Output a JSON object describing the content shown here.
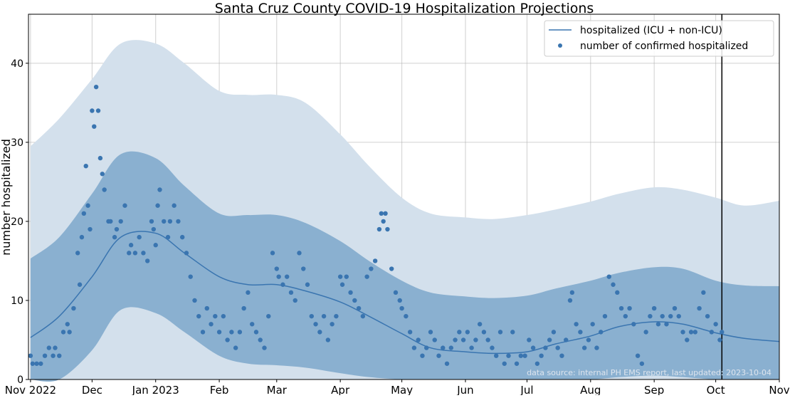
{
  "chart_data": {
    "type": "line",
    "title": "Santa Cruz County COVID-19 Hospitalization Projections",
    "xlabel": "",
    "ylabel": "number hospitalized",
    "xlim": [
      "2022-10-31",
      "2023-11-01"
    ],
    "ylim": [
      0,
      46.2
    ],
    "grid": true,
    "legend_position": "top-right",
    "x_ticks": [
      {
        "date": "2022-11-01",
        "label": "Nov 2022"
      },
      {
        "date": "2022-12-01",
        "label": "Dec"
      },
      {
        "date": "2023-01-01",
        "label": "Jan 2023"
      },
      {
        "date": "2023-02-01",
        "label": "Feb"
      },
      {
        "date": "2023-03-01",
        "label": "Mar"
      },
      {
        "date": "2023-04-01",
        "label": "Apr"
      },
      {
        "date": "2023-05-01",
        "label": "May"
      },
      {
        "date": "2023-06-01",
        "label": "Jun"
      },
      {
        "date": "2023-07-01",
        "label": "Jul"
      },
      {
        "date": "2023-08-01",
        "label": "Aug"
      },
      {
        "date": "2023-09-01",
        "label": "Sep"
      },
      {
        "date": "2023-10-01",
        "label": "Oct"
      },
      {
        "date": "2023-11-01",
        "label": "Nov"
      }
    ],
    "y_ticks": [
      0,
      10,
      20,
      30,
      40
    ],
    "colors": {
      "line": "#3a75b0",
      "points": "#3a75b0",
      "inner_band": "#8ab0d0",
      "outer_band": "#d3e0ec",
      "today_line": "#000000"
    },
    "today_line_date": "2023-10-04",
    "annotation": "data source: internal PH EMS report, last updated: 2023-10-04",
    "band_dates": [
      "2022-11-01",
      "2022-11-15",
      "2022-12-01",
      "2022-12-15",
      "2023-01-01",
      "2023-01-15",
      "2023-02-01",
      "2023-02-15",
      "2023-03-01",
      "2023-03-15",
      "2023-04-01",
      "2023-04-15",
      "2023-05-01",
      "2023-05-15",
      "2023-06-01",
      "2023-06-15",
      "2023-07-01",
      "2023-07-15",
      "2023-08-01",
      "2023-08-15",
      "2023-09-01",
      "2023-09-15",
      "2023-10-01",
      "2023-10-15",
      "2023-11-01"
    ],
    "series": [
      {
        "name": "hospitalized (ICU + non-ICU)",
        "kind": "line",
        "values": [
          5.3,
          8,
          13,
          18,
          18.5,
          16,
          13,
          12,
          12,
          11.2,
          9.8,
          8,
          5.8,
          4,
          3.5,
          3.3,
          3.5,
          4.5,
          5.5,
          6.7,
          7.3,
          7,
          5.9,
          5.2,
          4.8
        ]
      },
      {
        "kind": "band-outer",
        "upper": [
          29.5,
          33,
          38,
          42.5,
          42.5,
          40,
          36.5,
          36,
          36,
          35,
          31,
          27,
          23,
          21,
          20.5,
          20.3,
          20.8,
          21.5,
          22.5,
          23.5,
          24.3,
          24,
          23,
          22,
          22.6
        ],
        "lower": [
          0,
          0,
          0,
          0,
          0,
          0,
          0,
          0,
          0,
          0,
          0,
          0,
          0,
          0,
          0,
          0,
          0,
          0,
          0,
          0,
          0,
          0,
          0,
          0,
          0
        ]
      },
      {
        "kind": "band-inner",
        "upper": [
          15.3,
          18,
          23.5,
          28.5,
          28,
          24.5,
          21,
          20.8,
          20.8,
          19.8,
          17.5,
          15,
          12.5,
          11,
          10.5,
          10.3,
          10.6,
          11.5,
          12.5,
          13.5,
          14.2,
          14,
          12.5,
          11.9,
          11.8
        ],
        "lower": [
          0,
          0,
          3.7,
          8.8,
          8.4,
          6,
          3,
          2,
          1.8,
          1.5,
          0.8,
          0.3,
          0,
          0,
          0,
          0,
          0,
          0,
          0,
          0.3,
          0.5,
          0.3,
          0,
          0,
          0
        ]
      },
      {
        "name": "number of confirmed hospitalized",
        "kind": "scatter",
        "points": [
          [
            "2022-11-01",
            3
          ],
          [
            "2022-11-02",
            2
          ],
          [
            "2022-11-04",
            2
          ],
          [
            "2022-11-06",
            2
          ],
          [
            "2022-11-08",
            3
          ],
          [
            "2022-11-10",
            4
          ],
          [
            "2022-11-12",
            3
          ],
          [
            "2022-11-13",
            4
          ],
          [
            "2022-11-15",
            3
          ],
          [
            "2022-11-17",
            6
          ],
          [
            "2022-11-19",
            7
          ],
          [
            "2022-11-20",
            6
          ],
          [
            "2022-11-22",
            9
          ],
          [
            "2022-11-24",
            16
          ],
          [
            "2022-11-25",
            12
          ],
          [
            "2022-11-26",
            18
          ],
          [
            "2022-11-27",
            21
          ],
          [
            "2022-11-28",
            27
          ],
          [
            "2022-11-29",
            22
          ],
          [
            "2022-11-30",
            19
          ],
          [
            "2022-12-01",
            34
          ],
          [
            "2022-12-02",
            32
          ],
          [
            "2022-12-03",
            37
          ],
          [
            "2022-12-04",
            34
          ],
          [
            "2022-12-05",
            28
          ],
          [
            "2022-12-06",
            26
          ],
          [
            "2022-12-07",
            24
          ],
          [
            "2022-12-09",
            20
          ],
          [
            "2022-12-10",
            20
          ],
          [
            "2022-12-12",
            18
          ],
          [
            "2022-12-13",
            19
          ],
          [
            "2022-12-15",
            20
          ],
          [
            "2022-12-17",
            22
          ],
          [
            "2022-12-19",
            16
          ],
          [
            "2022-12-20",
            17
          ],
          [
            "2022-12-22",
            16
          ],
          [
            "2022-12-24",
            18
          ],
          [
            "2022-12-26",
            16
          ],
          [
            "2022-12-28",
            15
          ],
          [
            "2022-12-30",
            20
          ],
          [
            "2022-12-31",
            19
          ],
          [
            "2023-01-01",
            17
          ],
          [
            "2023-01-02",
            22
          ],
          [
            "2023-01-03",
            24
          ],
          [
            "2023-01-05",
            20
          ],
          [
            "2023-01-07",
            18
          ],
          [
            "2023-01-08",
            20
          ],
          [
            "2023-01-10",
            22
          ],
          [
            "2023-01-12",
            20
          ],
          [
            "2023-01-14",
            18
          ],
          [
            "2023-01-16",
            16
          ],
          [
            "2023-01-18",
            13
          ],
          [
            "2023-01-20",
            10
          ],
          [
            "2023-01-22",
            8
          ],
          [
            "2023-01-24",
            6
          ],
          [
            "2023-01-26",
            9
          ],
          [
            "2023-01-28",
            7
          ],
          [
            "2023-01-30",
            8
          ],
          [
            "2023-02-01",
            6
          ],
          [
            "2023-02-03",
            8
          ],
          [
            "2023-02-05",
            5
          ],
          [
            "2023-02-07",
            6
          ],
          [
            "2023-02-09",
            4
          ],
          [
            "2023-02-11",
            6
          ],
          [
            "2023-02-13",
            9
          ],
          [
            "2023-02-15",
            11
          ],
          [
            "2023-02-17",
            7
          ],
          [
            "2023-02-19",
            6
          ],
          [
            "2023-02-21",
            5
          ],
          [
            "2023-02-23",
            4
          ],
          [
            "2023-02-25",
            8
          ],
          [
            "2023-02-27",
            16
          ],
          [
            "2023-03-01",
            14
          ],
          [
            "2023-03-02",
            13
          ],
          [
            "2023-03-04",
            12
          ],
          [
            "2023-03-06",
            13
          ],
          [
            "2023-03-08",
            11
          ],
          [
            "2023-03-10",
            10
          ],
          [
            "2023-03-12",
            16
          ],
          [
            "2023-03-14",
            14
          ],
          [
            "2023-03-16",
            12
          ],
          [
            "2023-03-18",
            8
          ],
          [
            "2023-03-20",
            7
          ],
          [
            "2023-03-22",
            6
          ],
          [
            "2023-03-24",
            8
          ],
          [
            "2023-03-26",
            5
          ],
          [
            "2023-03-28",
            7
          ],
          [
            "2023-03-30",
            8
          ],
          [
            "2023-04-01",
            13
          ],
          [
            "2023-04-02",
            12
          ],
          [
            "2023-04-04",
            13
          ],
          [
            "2023-04-06",
            11
          ],
          [
            "2023-04-08",
            10
          ],
          [
            "2023-04-10",
            9
          ],
          [
            "2023-04-12",
            8
          ],
          [
            "2023-04-14",
            13
          ],
          [
            "2023-04-16",
            14
          ],
          [
            "2023-04-18",
            15
          ],
          [
            "2023-04-20",
            19
          ],
          [
            "2023-04-21",
            21
          ],
          [
            "2023-04-22",
            20
          ],
          [
            "2023-04-23",
            21
          ],
          [
            "2023-04-24",
            19
          ],
          [
            "2023-04-26",
            14
          ],
          [
            "2023-04-28",
            11
          ],
          [
            "2023-04-30",
            10
          ],
          [
            "2023-05-01",
            9
          ],
          [
            "2023-05-03",
            8
          ],
          [
            "2023-05-05",
            6
          ],
          [
            "2023-05-07",
            4
          ],
          [
            "2023-05-09",
            5
          ],
          [
            "2023-05-11",
            3
          ],
          [
            "2023-05-13",
            4
          ],
          [
            "2023-05-15",
            6
          ],
          [
            "2023-05-17",
            5
          ],
          [
            "2023-05-19",
            3
          ],
          [
            "2023-05-21",
            4
          ],
          [
            "2023-05-23",
            2
          ],
          [
            "2023-05-25",
            4
          ],
          [
            "2023-05-27",
            5
          ],
          [
            "2023-05-29",
            6
          ],
          [
            "2023-05-31",
            5
          ],
          [
            "2023-06-02",
            6
          ],
          [
            "2023-06-04",
            4
          ],
          [
            "2023-06-06",
            5
          ],
          [
            "2023-06-08",
            7
          ],
          [
            "2023-06-10",
            6
          ],
          [
            "2023-06-12",
            5
          ],
          [
            "2023-06-14",
            4
          ],
          [
            "2023-06-16",
            3
          ],
          [
            "2023-06-18",
            6
          ],
          [
            "2023-06-20",
            2
          ],
          [
            "2023-06-22",
            3
          ],
          [
            "2023-06-24",
            6
          ],
          [
            "2023-06-26",
            2
          ],
          [
            "2023-06-28",
            3
          ],
          [
            "2023-06-30",
            3
          ],
          [
            "2023-07-02",
            5
          ],
          [
            "2023-07-04",
            4
          ],
          [
            "2023-07-06",
            2
          ],
          [
            "2023-07-08",
            3
          ],
          [
            "2023-07-10",
            4
          ],
          [
            "2023-07-12",
            5
          ],
          [
            "2023-07-14",
            6
          ],
          [
            "2023-07-16",
            4
          ],
          [
            "2023-07-18",
            3
          ],
          [
            "2023-07-20",
            5
          ],
          [
            "2023-07-22",
            10
          ],
          [
            "2023-07-23",
            11
          ],
          [
            "2023-07-25",
            7
          ],
          [
            "2023-07-27",
            6
          ],
          [
            "2023-07-29",
            4
          ],
          [
            "2023-07-31",
            5
          ],
          [
            "2023-08-02",
            7
          ],
          [
            "2023-08-04",
            4
          ],
          [
            "2023-08-06",
            6
          ],
          [
            "2023-08-08",
            8
          ],
          [
            "2023-08-10",
            13
          ],
          [
            "2023-08-12",
            12
          ],
          [
            "2023-08-14",
            11
          ],
          [
            "2023-08-16",
            9
          ],
          [
            "2023-08-18",
            8
          ],
          [
            "2023-08-20",
            9
          ],
          [
            "2023-08-22",
            7
          ],
          [
            "2023-08-24",
            3
          ],
          [
            "2023-08-26",
            2
          ],
          [
            "2023-08-28",
            6
          ],
          [
            "2023-08-30",
            8
          ],
          [
            "2023-09-01",
            9
          ],
          [
            "2023-09-03",
            7
          ],
          [
            "2023-09-05",
            8
          ],
          [
            "2023-09-07",
            7
          ],
          [
            "2023-09-09",
            8
          ],
          [
            "2023-09-11",
            9
          ],
          [
            "2023-09-13",
            8
          ],
          [
            "2023-09-15",
            6
          ],
          [
            "2023-09-17",
            5
          ],
          [
            "2023-09-19",
            6
          ],
          [
            "2023-09-21",
            6
          ],
          [
            "2023-09-23",
            9
          ],
          [
            "2023-09-25",
            11
          ],
          [
            "2023-09-27",
            8
          ],
          [
            "2023-09-29",
            6
          ],
          [
            "2023-10-01",
            7
          ],
          [
            "2023-10-03",
            5
          ],
          [
            "2023-10-04",
            6
          ]
        ]
      }
    ]
  }
}
